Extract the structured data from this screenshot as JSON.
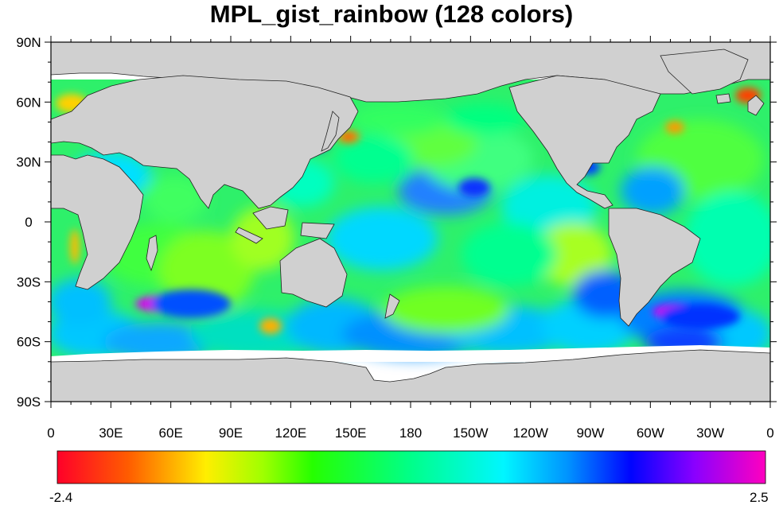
{
  "title": "MPL_gist_rainbow (128 colors)",
  "map": {
    "lat_labels": [
      "90N",
      "60N",
      "30N",
      "0",
      "30S",
      "60S",
      "90S"
    ],
    "lon_labels": [
      "0",
      "30E",
      "60E",
      "90E",
      "120E",
      "150E",
      "180",
      "150W",
      "120W",
      "90W",
      "60W",
      "30W",
      "0"
    ],
    "land_color": "#d0d0d0",
    "ocean_field": "sea surface anomaly field, gist_rainbow colormap",
    "notable_anomalies": [
      {
        "region": "southern Indian Ocean",
        "level": "high",
        "color": "#e000f0"
      },
      {
        "region": "South Atlantic off Argentina",
        "level": "high",
        "color": "#e000f0"
      },
      {
        "region": "Kuroshio off Japan",
        "level": "low",
        "color": "#ff8800"
      },
      {
        "region": "Gulf Stream",
        "level": "low",
        "color": "#ff8800"
      },
      {
        "region": "Benguela (SW Africa coast)",
        "level": "low",
        "color": "#ffbb00"
      }
    ]
  },
  "colorbar": {
    "min_label": "-2.4",
    "max_label": "2.5",
    "min": -2.4,
    "max": 2.5,
    "n_colors": 128,
    "colormap": "gist_rainbow"
  }
}
